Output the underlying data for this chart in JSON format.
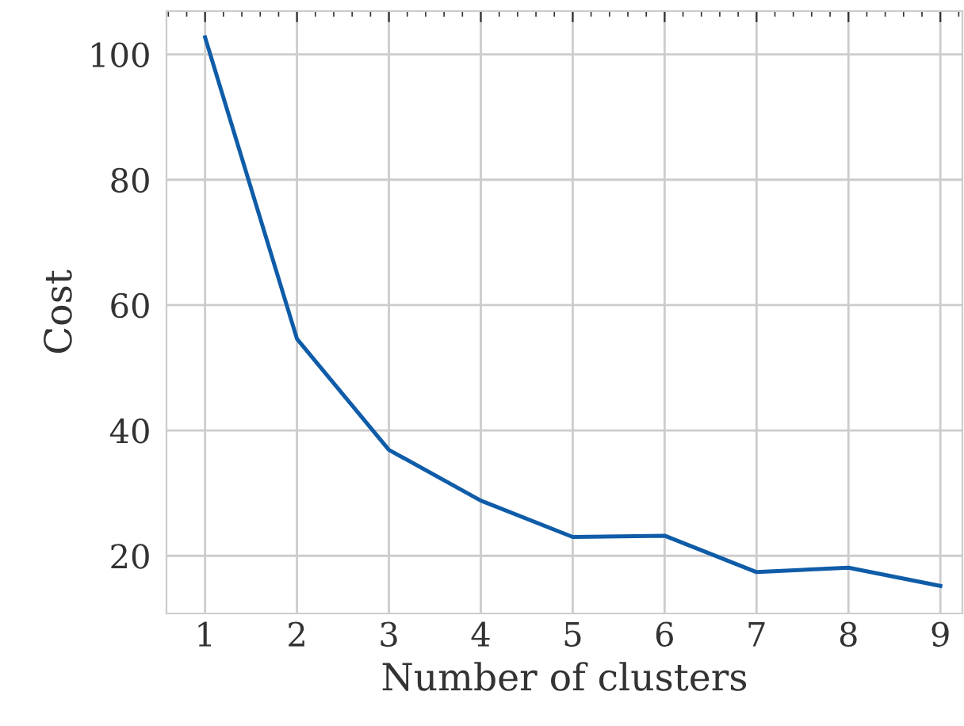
{
  "chart_data": {
    "type": "line",
    "xlabel": "Number of clusters",
    "ylabel": "Cost",
    "x": [
      1,
      2,
      3,
      4,
      5,
      6,
      7,
      8,
      9
    ],
    "series": [
      {
        "color": "#0f5ca8",
        "values": [
          102.7,
          54.6,
          36.9,
          28.8,
          23.0,
          23.2,
          17.4,
          18.1,
          15.2
        ]
      }
    ],
    "xlim": [
      0.58,
      9.24
    ],
    "ylim": [
      10.8,
      106.9
    ],
    "xticks": [
      1,
      2,
      3,
      4,
      5,
      6,
      7,
      8,
      9
    ],
    "yticks": [
      20,
      40,
      60,
      80,
      100
    ],
    "grid": true
  }
}
